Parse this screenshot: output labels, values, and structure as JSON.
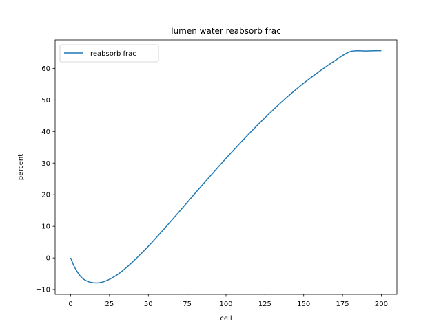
{
  "chart_data": {
    "type": "line",
    "title": "lumen water reabsorb frac",
    "xlabel": "cell",
    "ylabel": "percent",
    "xlim": [
      -10,
      210
    ],
    "ylim": [
      -11.5,
      69
    ],
    "xticks": [
      0,
      25,
      50,
      75,
      100,
      125,
      150,
      175,
      200
    ],
    "yticks": [
      -10,
      0,
      10,
      20,
      30,
      40,
      50,
      60
    ],
    "grid": false,
    "legend": "top-left",
    "series": [
      {
        "name": "reabsorb frac",
        "color": "#1f77b4",
        "x": [
          0,
          2,
          4,
          6,
          8,
          10,
          12,
          14,
          17,
          20,
          23,
          26,
          30,
          35,
          40,
          45,
          50,
          60,
          70,
          80,
          90,
          100,
          110,
          120,
          130,
          140,
          150,
          160,
          170,
          180,
          190,
          200
        ],
        "y": [
          0,
          -2.4,
          -4.2,
          -5.6,
          -6.6,
          -7.2,
          -7.6,
          -7.8,
          -7.9,
          -7.7,
          -7.2,
          -6.5,
          -5.3,
          -3.4,
          -1.2,
          1.2,
          3.7,
          9.1,
          14.7,
          20.4,
          26.0,
          31.5,
          36.8,
          41.9,
          46.7,
          51.2,
          55.3,
          59.0,
          62.4,
          65.3,
          65.5,
          65.6
        ]
      }
    ]
  }
}
